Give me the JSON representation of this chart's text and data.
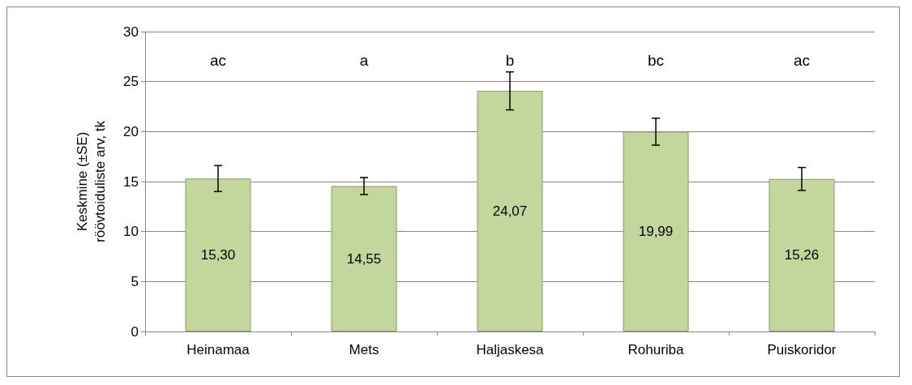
{
  "chart_data": {
    "type": "bar",
    "ylabel": "Keskmine (±SE)\nröövtoiduliste arv, tk",
    "categories": [
      "Heinamaa",
      "Mets",
      "Haljaskesa",
      "Rohuriba",
      "Puiskoridor"
    ],
    "values": [
      15.3,
      14.55,
      24.07,
      19.99,
      15.26
    ],
    "value_labels": [
      "15,30",
      "14,55",
      "24,07",
      "19,99",
      "15,26"
    ],
    "errors": [
      1.3,
      0.85,
      1.9,
      1.35,
      1.15
    ],
    "color": "#c3d69b",
    "ylim": [
      0,
      30
    ],
    "yticks": [
      0,
      5,
      10,
      15,
      20,
      25,
      30
    ],
    "grid": "y",
    "annotations": [
      "ac",
      "a",
      "b",
      "bc",
      "ac"
    ]
  }
}
